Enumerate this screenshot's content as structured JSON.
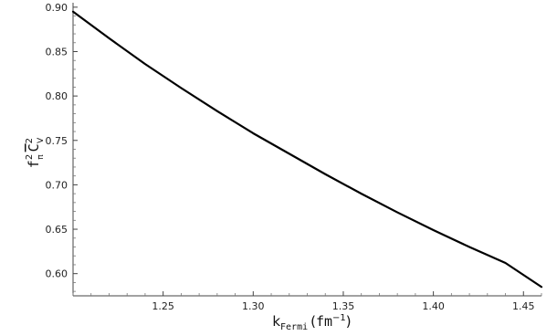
{
  "chart_data": {
    "type": "line",
    "title": "",
    "xlabel": {
      "main": "k",
      "sub": "Fermi",
      "unit_open": "(",
      "unit": "fm",
      "unit_exp": "−1",
      "unit_close": ")"
    },
    "ylabel": {
      "f": "f",
      "f_sup": "2",
      "f_sub": "π",
      "c": "C",
      "c_sup": "2",
      "c_sub": "V"
    },
    "xlim": [
      1.2,
      1.46
    ],
    "ylim": [
      0.575,
      0.905
    ],
    "xticks": [
      1.25,
      1.3,
      1.35,
      1.4,
      1.45
    ],
    "xtick_labels": [
      "1.25",
      "1.30",
      "1.35",
      "1.40",
      "1.45"
    ],
    "yticks": [
      0.6,
      0.65,
      0.7,
      0.75,
      0.8,
      0.85,
      0.9
    ],
    "ytick_labels": [
      "0.60",
      "0.65",
      "0.70",
      "0.75",
      "0.80",
      "0.85",
      "0.90"
    ],
    "grid": false,
    "series": [
      {
        "color": "#000000",
        "x": [
          1.2,
          1.22,
          1.24,
          1.26,
          1.28,
          1.3,
          1.32,
          1.34,
          1.36,
          1.38,
          1.4,
          1.42,
          1.44,
          1.46
        ],
        "y": [
          0.895,
          0.865,
          0.836,
          0.809,
          0.783,
          0.758,
          0.735,
          0.712,
          0.69,
          0.669,
          0.649,
          0.63,
          0.612,
          0.585
        ]
      }
    ]
  }
}
